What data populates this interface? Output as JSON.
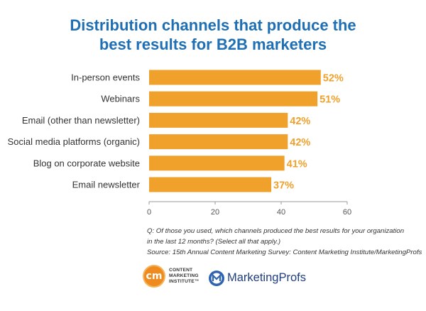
{
  "chart_data": {
    "type": "bar",
    "orientation": "horizontal",
    "title_lines": [
      "Distribution channels that produce the",
      "best results for B2B marketers"
    ],
    "categories": [
      "In-person events",
      "Webinars",
      "Email (other than newsletter)",
      "Social media platforms (organic)",
      "Blog on corporate website",
      "Email newsletter"
    ],
    "values": [
      52,
      51,
      42,
      42,
      41,
      37
    ],
    "data_labels": [
      "52%",
      "51%",
      "42%",
      "42%",
      "41%",
      "37%"
    ],
    "x_ticks": [
      0,
      20,
      40,
      60
    ],
    "xlim": [
      0,
      60
    ],
    "grid": false,
    "legend": "none",
    "bar_color": "#f0a12c",
    "label_color": "#f0a12c",
    "title_color": "#1f6fb5"
  },
  "notes": {
    "question_line1": "Q: Of those you used, which channels produced the best results for your organization",
    "question_line2": "in the last 12 months?  (Select all that apply.)",
    "source": "Source: 15th Annual Content Marketing Survey: Content Marketing Institute/MarketingProfs"
  },
  "logos": {
    "cmi_badge": "cm",
    "cmi_lines": [
      "CONTENT",
      "MARKETING",
      "INSTITUTE™"
    ],
    "marketingprofs": "MarketingProfs"
  }
}
